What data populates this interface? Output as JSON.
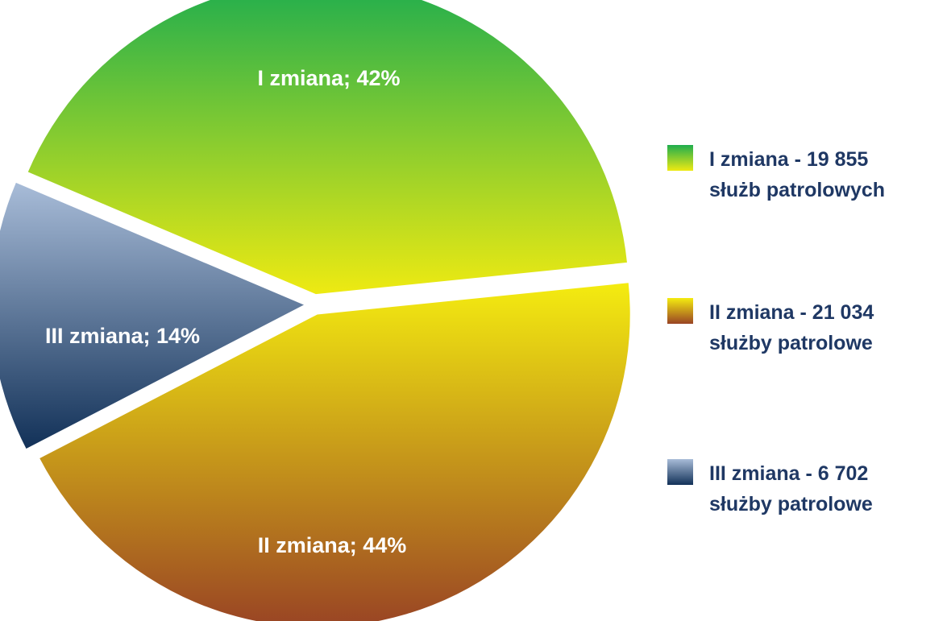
{
  "chart_data": {
    "type": "pie",
    "series": [
      {
        "slices": [
          {
            "label": "I zmiana; 42%",
            "value": 42,
            "legend": [
              "I zmiana - 19 855",
              "służb patrolowych"
            ],
            "color_top": "#1fad4e",
            "color_bottom": "#eeea12"
          },
          {
            "label": "II zmiana; 44%",
            "value": 44,
            "legend": [
              "II zmiana - 21 034",
              "służby patrolowe"
            ],
            "color_top": "#f4ec10",
            "color_bottom": "#994424"
          },
          {
            "label": "III zmiana; 14%",
            "value": 14,
            "legend": [
              "III zmiana - 6 702",
              "służby patrolowe"
            ],
            "color_top": "#a8bcd8",
            "color_bottom": "#123158"
          }
        ]
      }
    ],
    "legend_position": "right",
    "exploded": true
  }
}
